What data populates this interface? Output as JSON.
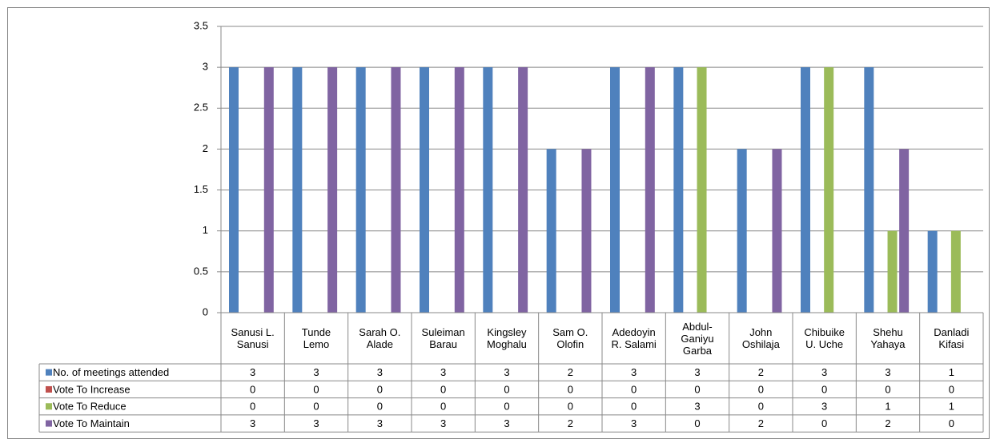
{
  "chart_data": {
    "type": "bar",
    "categories": [
      "Sanusi L. Sanusi",
      "Tunde Lemo",
      "Sarah O. Alade",
      "Suleiman Barau",
      "Kingsley Moghalu",
      "Sam O. Olofin",
      "Adedoyin R. Salami",
      "Abdul-Ganiyu Garba",
      "John Oshilaja",
      "Chibuike U. Uche",
      "Shehu Yahaya",
      "Danladi Kifasi"
    ],
    "series": [
      {
        "name": "No. of meetings attended",
        "color": "#4f81bd",
        "values": [
          3,
          3,
          3,
          3,
          3,
          2,
          3,
          3,
          2,
          3,
          3,
          1
        ]
      },
      {
        "name": "Vote To Increase",
        "color": "#c0504d",
        "values": [
          0,
          0,
          0,
          0,
          0,
          0,
          0,
          0,
          0,
          0,
          0,
          0
        ]
      },
      {
        "name": "Vote To Reduce",
        "color": "#9bbb59",
        "values": [
          0,
          0,
          0,
          0,
          0,
          0,
          0,
          3,
          0,
          3,
          1,
          1
        ]
      },
      {
        "name": "Vote To Maintain",
        "color": "#8064a2",
        "values": [
          3,
          3,
          3,
          3,
          3,
          2,
          3,
          0,
          2,
          0,
          2,
          0
        ]
      }
    ],
    "ylim": [
      0,
      3.5
    ],
    "yticks": [
      0,
      0.5,
      1,
      1.5,
      2,
      2.5,
      3,
      3.5
    ],
    "grid": true,
    "data_table": true
  }
}
